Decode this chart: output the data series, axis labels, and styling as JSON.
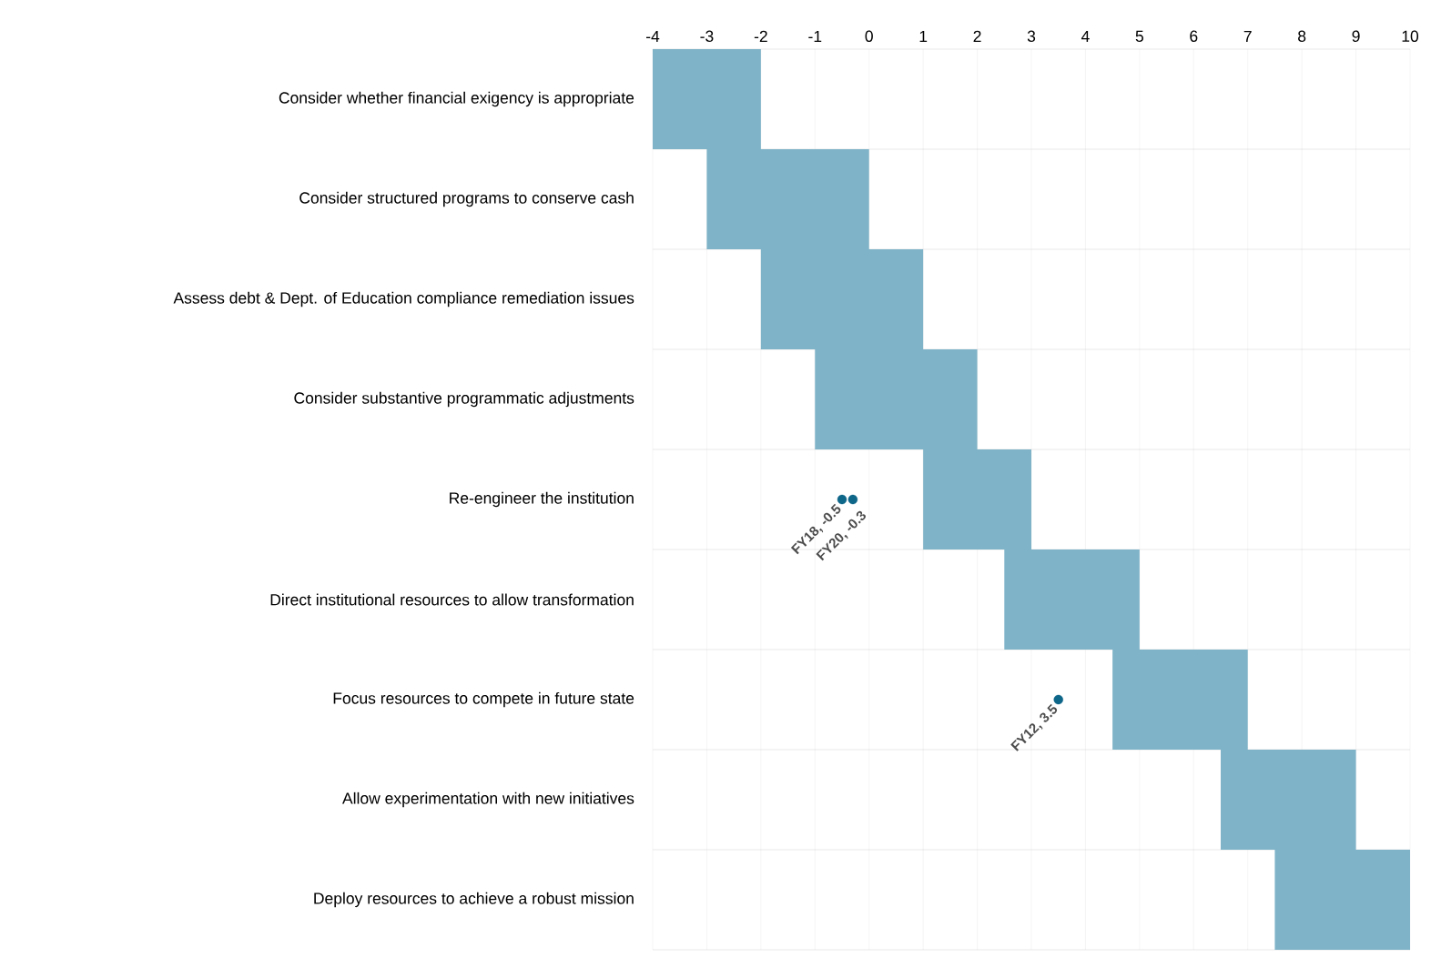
{
  "chart_data": {
    "type": "bar",
    "orientation": "horizontal",
    "categories": [
      "Consider whether financial exigency is appropriate",
      "Consider structured programs to conserve cash",
      "Assess debt & Dept. of Education compliance remediation issues",
      "Consider substantive programmatic adjustments",
      "Re-engineer the institution",
      "Direct institutional resources to allow transformation",
      "Focus resources to compete in future state",
      "Allow experimentation with new initiatives",
      "Deploy resources to achieve a robust mission"
    ],
    "series": [
      {
        "color": "#7fb3c8",
        "base": [
          -4,
          -3,
          -2,
          -1,
          1,
          2.5,
          4.5,
          6.5,
          7.5
        ],
        "values": [
          2,
          3,
          3,
          3,
          2,
          2.5,
          2.5,
          2.5,
          2.5
        ]
      },
      {
        "type": "scatter",
        "color": "#0e6688",
        "x": [
          "Re-engineer the institution",
          "Re-engineer the institution",
          "Focus resources to compete in future state"
        ],
        "values": [
          -0.5,
          -0.3,
          3.5
        ],
        "value_labels": [
          "FY18, -0.5",
          "FY20, -0.3",
          "FY12, 3.5"
        ]
      }
    ],
    "xlim": [
      -4,
      10
    ],
    "xticks": [
      -4,
      -3,
      -2,
      -1,
      0,
      1,
      2,
      3,
      4,
      5,
      6,
      7,
      8,
      9,
      10
    ],
    "grid": true
  }
}
